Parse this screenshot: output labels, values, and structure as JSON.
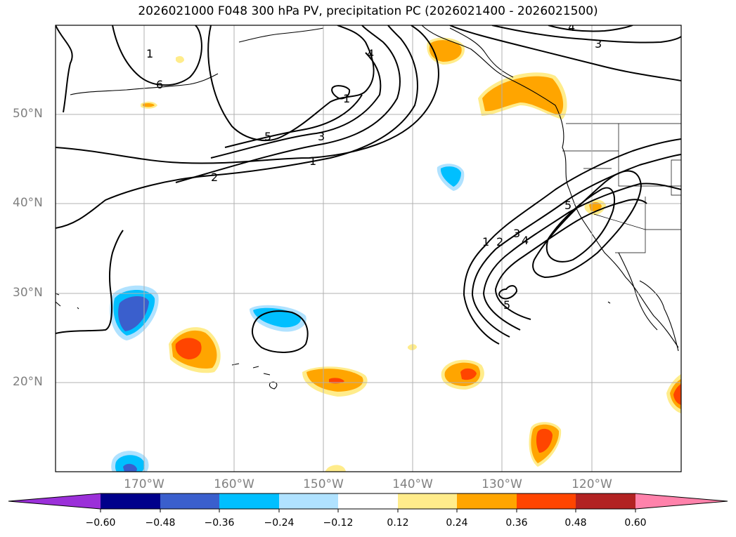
{
  "title": "2026021000 F048 300 hPa PV, precipitation PC (2026021400 - 2026021500)",
  "map": {
    "lat_labels": [
      "50°N",
      "40°N",
      "30°N",
      "20°N"
    ],
    "lon_labels": [
      "170°W",
      "160°W",
      "150°W",
      "140°W",
      "130°W",
      "120°W"
    ],
    "contour_labels": [
      "1",
      "2",
      "3",
      "4",
      "5",
      "6",
      "1",
      "2",
      "3",
      "4",
      "5",
      "5",
      "1",
      "3",
      "4",
      "1"
    ]
  },
  "colorbar": {
    "ticks": [
      "−0.60",
      "−0.48",
      "−0.36",
      "−0.24",
      "−0.12",
      "0.12",
      "0.24",
      "0.36",
      "0.48",
      "0.60"
    ],
    "colors": [
      "#9b30d9",
      "#00008b",
      "#3a5fcd",
      "#00bfff",
      "#b0e2ff",
      "#ffffff",
      "#ffec8b",
      "#ffa500",
      "#ff4500",
      "#b22222",
      "#ff82ab"
    ]
  },
  "colors": {
    "pv_contour": "#000000",
    "grid": "#b0b0b0",
    "coast": "#000000",
    "neg_light": "#b0e2ff",
    "neg_mid": "#00bfff",
    "neg_dark": "#3a5fcd",
    "pos_light": "#ffec8b",
    "pos_mid": "#ffa500",
    "pos_dark": "#ff4500"
  }
}
